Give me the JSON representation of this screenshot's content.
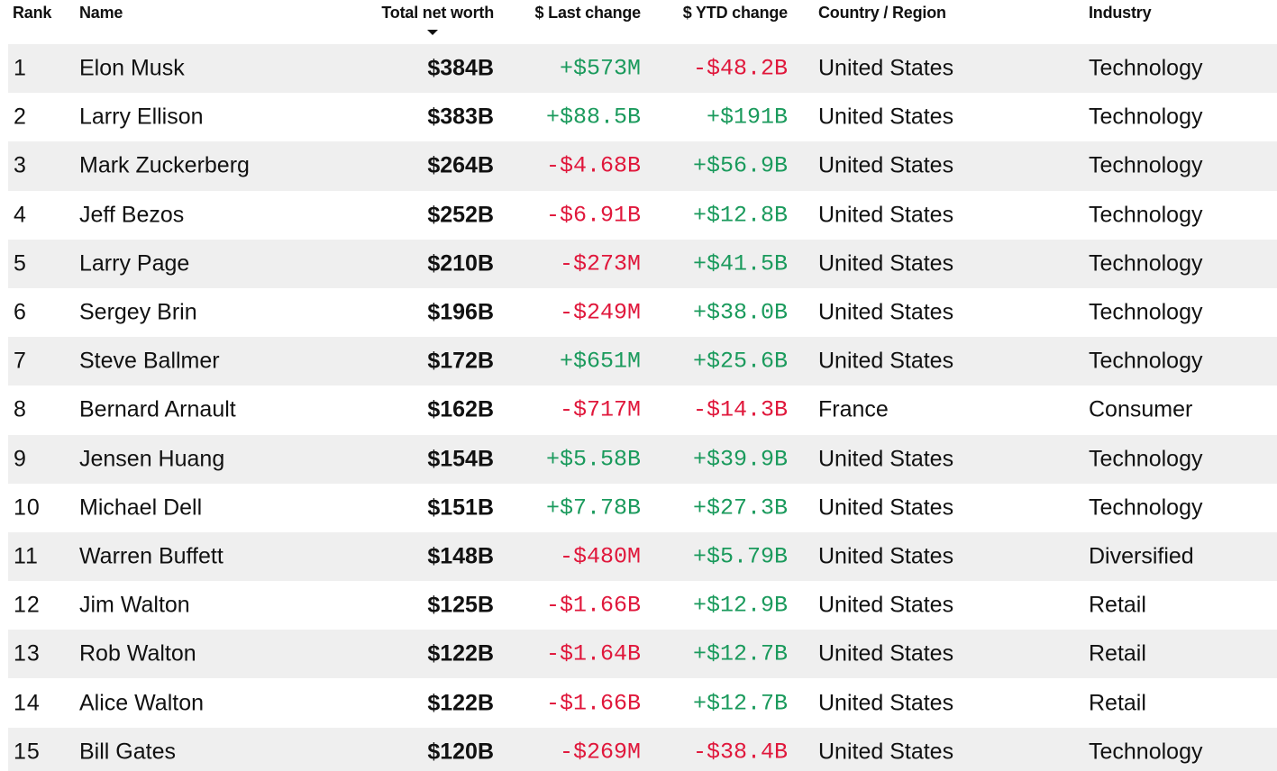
{
  "columns": {
    "rank": "Rank",
    "name": "Name",
    "net_worth": "Total net worth",
    "last_change": "$ Last change",
    "ytd_change": "$ YTD change",
    "country": "Country / Region",
    "industry": "Industry"
  },
  "colors": {
    "positive": "#1a9a5c",
    "negative": "#e0173b",
    "stripe": "#efefef"
  },
  "rows": [
    {
      "rank": "1",
      "name": "Elon Musk",
      "net_worth": "$384B",
      "last_change": "+$573M",
      "ytd_change": "-$48.2B",
      "country": "United States",
      "industry": "Technology"
    },
    {
      "rank": "2",
      "name": "Larry Ellison",
      "net_worth": "$383B",
      "last_change": "+$88.5B",
      "ytd_change": "+$191B",
      "country": "United States",
      "industry": "Technology"
    },
    {
      "rank": "3",
      "name": "Mark Zuckerberg",
      "net_worth": "$264B",
      "last_change": "-$4.68B",
      "ytd_change": "+$56.9B",
      "country": "United States",
      "industry": "Technology"
    },
    {
      "rank": "4",
      "name": "Jeff Bezos",
      "net_worth": "$252B",
      "last_change": "-$6.91B",
      "ytd_change": "+$12.8B",
      "country": "United States",
      "industry": "Technology"
    },
    {
      "rank": "5",
      "name": "Larry Page",
      "net_worth": "$210B",
      "last_change": "-$273M",
      "ytd_change": "+$41.5B",
      "country": "United States",
      "industry": "Technology"
    },
    {
      "rank": "6",
      "name": "Sergey Brin",
      "net_worth": "$196B",
      "last_change": "-$249M",
      "ytd_change": "+$38.0B",
      "country": "United States",
      "industry": "Technology"
    },
    {
      "rank": "7",
      "name": "Steve Ballmer",
      "net_worth": "$172B",
      "last_change": "+$651M",
      "ytd_change": "+$25.6B",
      "country": "United States",
      "industry": "Technology"
    },
    {
      "rank": "8",
      "name": "Bernard Arnault",
      "net_worth": "$162B",
      "last_change": "-$717M",
      "ytd_change": "-$14.3B",
      "country": "France",
      "industry": "Consumer"
    },
    {
      "rank": "9",
      "name": "Jensen Huang",
      "net_worth": "$154B",
      "last_change": "+$5.58B",
      "ytd_change": "+$39.9B",
      "country": "United States",
      "industry": "Technology"
    },
    {
      "rank": "10",
      "name": "Michael Dell",
      "net_worth": "$151B",
      "last_change": "+$7.78B",
      "ytd_change": "+$27.3B",
      "country": "United States",
      "industry": "Technology"
    },
    {
      "rank": "11",
      "name": "Warren Buffett",
      "net_worth": "$148B",
      "last_change": "-$480M",
      "ytd_change": "+$5.79B",
      "country": "United States",
      "industry": "Diversified"
    },
    {
      "rank": "12",
      "name": "Jim Walton",
      "net_worth": "$125B",
      "last_change": "-$1.66B",
      "ytd_change": "+$12.9B",
      "country": "United States",
      "industry": "Retail"
    },
    {
      "rank": "13",
      "name": "Rob Walton",
      "net_worth": "$122B",
      "last_change": "-$1.64B",
      "ytd_change": "+$12.7B",
      "country": "United States",
      "industry": "Retail"
    },
    {
      "rank": "14",
      "name": "Alice Walton",
      "net_worth": "$122B",
      "last_change": "-$1.66B",
      "ytd_change": "+$12.7B",
      "country": "United States",
      "industry": "Retail"
    },
    {
      "rank": "15",
      "name": "Bill Gates",
      "net_worth": "$120B",
      "last_change": "-$269M",
      "ytd_change": "-$38.4B",
      "country": "United States",
      "industry": "Technology"
    }
  ]
}
